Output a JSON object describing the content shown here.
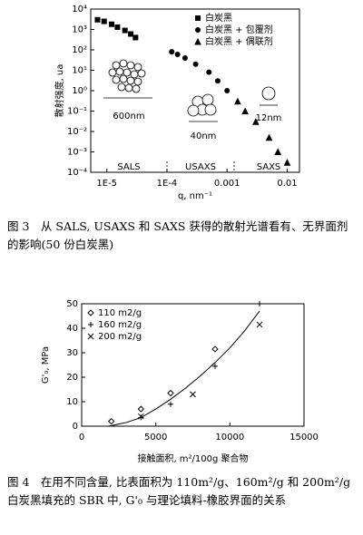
{
  "chart_data": [
    {
      "type": "scatter",
      "xscale": "log",
      "yscale": "log",
      "xlabel": "q, nm⁻¹",
      "ylabel": "散射强度, ua",
      "xlim": [
        5.4e-06,
        0.016
      ],
      "ylim": [
        0.0001,
        10000
      ],
      "xticks": [
        {
          "value": 1e-05,
          "label": "1E-5"
        },
        {
          "value": 0.0001,
          "label": "1E-4"
        },
        0.001,
        0.01
      ],
      "yticks": [
        {
          "value": 10000,
          "label": "10⁴"
        },
        {
          "value": 1000,
          "label": "10³"
        },
        {
          "value": 100,
          "label": "10²"
        },
        {
          "value": 10,
          "label": "10¹"
        },
        {
          "value": 1,
          "label": "10⁰"
        },
        {
          "value": 0.1,
          "label": "10⁻¹"
        },
        {
          "value": 0.01,
          "label": "10⁻²"
        },
        {
          "value": 0.001,
          "label": "10⁻³"
        },
        {
          "value": 0.0001,
          "label": "10⁻⁴"
        }
      ],
      "legend": "upper right",
      "series": [
        {
          "name": "白炭黑",
          "marker": "square",
          "color": "#000000",
          "x": [
            7e-06,
            9e-06,
            1.2e-05,
            1.5e-05,
            2e-05,
            2.5e-05,
            3e-05
          ],
          "values": [
            3000,
            2500,
            1800,
            1300,
            900,
            600,
            400
          ]
        },
        {
          "name": "白炭黑 + 包覆剂",
          "marker": "circle",
          "color": "#000000",
          "x": [
            0.00012,
            0.00015,
            0.0002,
            0.0003,
            0.0005,
            0.0007,
            0.001
          ],
          "values": [
            80,
            60,
            40,
            20,
            8,
            3,
            1
          ]
        },
        {
          "name": "白炭黑 + 偶联剂",
          "marker": "triangle",
          "color": "#000000",
          "x": [
            0.0015,
            0.002,
            0.003,
            0.005,
            0.007,
            0.01
          ],
          "values": [
            0.3,
            0.1,
            0.03,
            0.005,
            0.001,
            0.0003
          ]
        }
      ],
      "annotations": [
        "SALS",
        "USAXS",
        "SAXS",
        "600nm",
        "40nm",
        "12nm"
      ]
    },
    {
      "type": "scatter",
      "xlabel": "接触面积, m²/100g 聚合物",
      "ylabel": "G'₀, MPa",
      "xlim": [
        0,
        15000
      ],
      "ylim": [
        0,
        50
      ],
      "xticks": [
        0,
        5000,
        10000,
        15000
      ],
      "yticks": [
        0,
        10,
        20,
        30,
        40,
        50
      ],
      "legend": "upper left",
      "series": [
        {
          "name": "110 m2/g",
          "marker": "diamond",
          "color": "#000000",
          "x": [
            2000,
            4000,
            6000,
            9000
          ],
          "values": [
            2,
            7,
            13.5,
            31.5
          ]
        },
        {
          "name": "160 m2/g",
          "marker": "plus",
          "color": "#000000",
          "x": [
            4000,
            6000,
            9000,
            12000
          ],
          "values": [
            3.5,
            9,
            24.5,
            50
          ]
        },
        {
          "name": "200 m2/g",
          "marker": "cross",
          "color": "#000000",
          "x": [
            4000,
            7500,
            12000
          ],
          "values": [
            4,
            13,
            41.5
          ]
        }
      ],
      "fit": {
        "x": [
          1800,
          3000,
          4000,
          5000,
          6000,
          7000,
          8000,
          9000,
          10000,
          11000,
          12000
        ],
        "values": [
          0,
          1.5,
          3.5,
          7,
          11,
          15.5,
          20.5,
          26,
          32,
          39,
          47
        ]
      }
    }
  ],
  "captions": [
    "图 3　从 SALS, USAXS 和 SAXS 获得的散射光谱看有、无界面剂的影响(50 份白炭黑)",
    "图 4　在用不同含量, 比表面积为 110m²/g、160m²/g 和 200m²/g 白炭黑填充的 SBR 中, G'₀ 与理论填料-橡胶界面的关系"
  ]
}
